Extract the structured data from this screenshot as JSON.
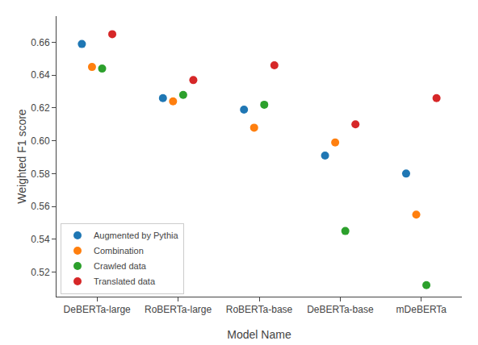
{
  "chart_data": {
    "type": "scatter",
    "categories": [
      "DeBERTa-large",
      "RoBERTa-large",
      "RoBERTa-base",
      "DeBERTa-base",
      "mDeBERTa"
    ],
    "series": [
      {
        "name": "Augmented by Pythia",
        "color": "#1f77b4",
        "values": [
          0.659,
          0.626,
          0.619,
          0.591,
          0.58
        ]
      },
      {
        "name": "Combination",
        "color": "#ff7f0e",
        "values": [
          0.645,
          0.624,
          0.608,
          0.599,
          0.555
        ]
      },
      {
        "name": "Crawled data",
        "color": "#2ca02c",
        "values": [
          0.644,
          0.628,
          0.622,
          0.545,
          0.512
        ]
      },
      {
        "name": "Translated data",
        "color": "#d62728",
        "values": [
          0.665,
          0.637,
          0.646,
          0.61,
          0.626
        ]
      }
    ],
    "xlabel": "Model Name",
    "ylabel": "Weighted F1 score",
    "ylim": [
      0.505,
      0.676
    ],
    "yticks": [
      0.52,
      0.54,
      0.56,
      0.58,
      {
        "value": 0.6,
        "label": "0.60"
      },
      0.62,
      0.64,
      0.66
    ],
    "grid": false,
    "legend": "lower left",
    "marker": "circle"
  }
}
